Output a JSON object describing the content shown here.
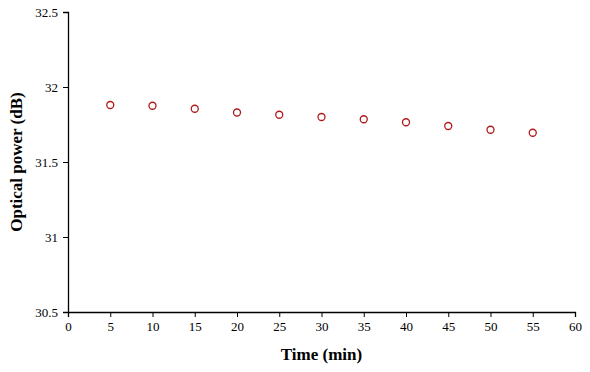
{
  "chart_data": {
    "type": "scatter",
    "x_label": "Time (min)",
    "y_label": "Optical power (dB)",
    "x": [
      5,
      10,
      15,
      20,
      25,
      30,
      35,
      40,
      45,
      50,
      55
    ],
    "values": [
      31.88,
      31.875,
      31.855,
      31.83,
      31.815,
      31.8,
      31.785,
      31.765,
      31.74,
      31.715,
      31.695
    ],
    "color": "#b01a1a",
    "marker": "circle-open",
    "xlim": [
      0,
      60
    ],
    "xticks": [
      0,
      5,
      10,
      15,
      20,
      25,
      30,
      35,
      40,
      45,
      50,
      55,
      60
    ],
    "ylim": [
      30.5,
      32.5
    ],
    "yticks": [
      30.5,
      31,
      31.5,
      32,
      32.5
    ],
    "grid": false
  }
}
